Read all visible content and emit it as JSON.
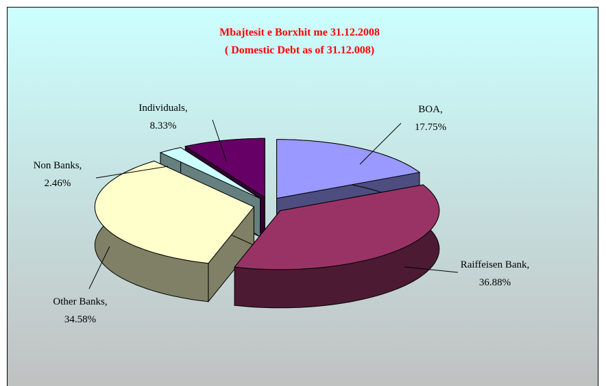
{
  "chart_data": {
    "type": "pie3d",
    "title": "Mbajtesit e Borxhit me 31.12.2008",
    "subtitle": "( Domestic Debt as of 31.12.008)",
    "categories": [
      "BOA,",
      "Raiffeisen Bank,",
      "Other Banks,",
      "Non Banks,",
      "Individuals,"
    ],
    "values": [
      17.75,
      36.88,
      34.58,
      2.46,
      8.33
    ],
    "value_labels": [
      "17.75%",
      "36.88%",
      "34.58%",
      "2.46%",
      "8.33%"
    ],
    "colors": [
      "#9999ff",
      "#993366",
      "#ffffcc",
      "#ccffff",
      "#660066"
    ]
  }
}
